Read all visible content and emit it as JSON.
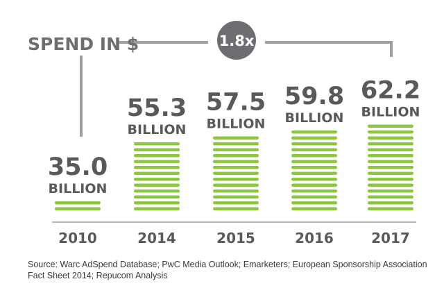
{
  "chart_data": {
    "type": "bar",
    "title": "SPEND IN $",
    "categories": [
      "2010",
      "2014",
      "2015",
      "2016",
      "2017"
    ],
    "values": [
      35.0,
      55.3,
      57.5,
      59.8,
      62.2
    ],
    "value_labels": [
      "35.0",
      "55.3",
      "57.5",
      "59.8",
      "62.2"
    ],
    "unit_label": "BILLION",
    "growth_label": "1.8x",
    "bar_color": "#8dc63f",
    "axis_color": "#9d9fa2"
  },
  "source_text": "Source: Warc AdSpend Database; PwC Media Outlook; Emarketers; European Sponsorship Association Fact Sheet 2014; Repucom Analysis"
}
